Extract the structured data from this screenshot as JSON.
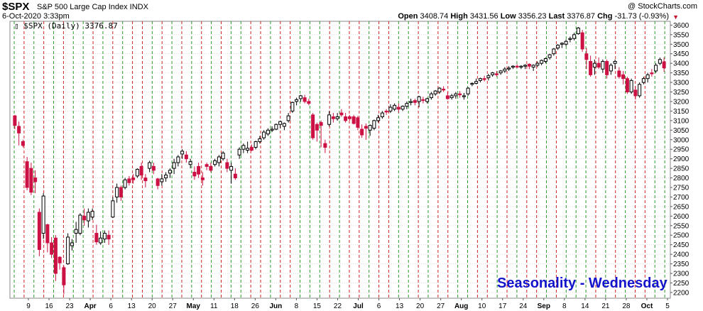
{
  "header": {
    "symbol": "$SPX",
    "description": "S&P 500 Large Cap Index INDX",
    "brand": "@ StockCharts.com",
    "datetime": "6-Oct-2020 3:33pm",
    "open_label": "Open",
    "open": "3408.74",
    "high_label": "High",
    "high": "3431.56",
    "low_label": "Low",
    "low": "3356.23",
    "last_label": "Last",
    "last": "3376.87",
    "chg_label": "Chg",
    "chg": "-31.73 (-0.93%)"
  },
  "legend_text": "$SPX (Daily) 3376.87",
  "annotation": "Seasonality - Wednesday",
  "colors": {
    "up": "#000000",
    "down": "#cc1144",
    "green_line": "#2a9a2a",
    "red_line": "#cc2222",
    "grid": "#cccccc",
    "annotation": "#1414cc"
  },
  "chart_data": {
    "type": "candlestick",
    "ylim": [
      2170,
      3620
    ],
    "y_axis_position": "right",
    "y_ticks": [
      2200,
      2250,
      2300,
      2350,
      2400,
      2450,
      2500,
      2550,
      2600,
      2650,
      2700,
      2750,
      2800,
      2850,
      2900,
      2950,
      3000,
      3050,
      3100,
      3150,
      3200,
      3250,
      3300,
      3350,
      3400,
      3450,
      3500,
      3550,
      3600
    ],
    "x_tick_labels": [
      {
        "label": "9",
        "month": false
      },
      {
        "label": "16",
        "month": false
      },
      {
        "label": "23",
        "month": false
      },
      {
        "label": "Apr",
        "month": true
      },
      {
        "label": "6",
        "month": false
      },
      {
        "label": "13",
        "month": false
      },
      {
        "label": "20",
        "month": false
      },
      {
        "label": "27",
        "month": false
      },
      {
        "label": "May",
        "month": true
      },
      {
        "label": "11",
        "month": false
      },
      {
        "label": "18",
        "month": false
      },
      {
        "label": "26",
        "month": false
      },
      {
        "label": "Jun",
        "month": true
      },
      {
        "label": "8",
        "month": false
      },
      {
        "label": "15",
        "month": false
      },
      {
        "label": "22",
        "month": false
      },
      {
        "label": "Jul",
        "month": true
      },
      {
        "label": "6",
        "month": false
      },
      {
        "label": "13",
        "month": false
      },
      {
        "label": "20",
        "month": false
      },
      {
        "label": "27",
        "month": false
      },
      {
        "label": "Aug",
        "month": true
      },
      {
        "label": "10",
        "month": false
      },
      {
        "label": "17",
        "month": false
      },
      {
        "label": "24",
        "month": false
      },
      {
        "label": "Sep",
        "month": true
      },
      {
        "label": "8",
        "month": false
      },
      {
        "label": "14",
        "month": false
      },
      {
        "label": "21",
        "month": false
      },
      {
        "label": "28",
        "month": false
      },
      {
        "label": "Oct",
        "month": true
      },
      {
        "label": "5",
        "month": false
      }
    ],
    "weekly_markers": [
      "green",
      "red",
      "green",
      "red",
      "green",
      "red",
      "green",
      "green",
      "red",
      "green",
      "red",
      "green",
      "red",
      "red",
      "green",
      "red",
      "green",
      "red",
      "green",
      "red",
      "green",
      "red",
      "green",
      "green",
      "red",
      "red",
      "green",
      "red",
      "red",
      "green",
      "green",
      "green",
      "red",
      "green",
      "red",
      "red",
      "green",
      "red",
      "red",
      "green",
      "green",
      "red",
      "green",
      "red",
      "red",
      "green",
      "green",
      "red",
      "red",
      "green",
      "red",
      "green",
      "red",
      "red",
      "green",
      "red",
      "green",
      "green",
      "green",
      "red",
      "green",
      "red",
      "green",
      "red",
      "red",
      "green",
      "green"
    ],
    "candles": [
      [
        3125,
        3130,
        3055,
        3075
      ],
      [
        3070,
        3095,
        2970,
        3035
      ],
      [
        2990,
        3000,
        2960,
        2970
      ],
      [
        2885,
        2910,
        2735,
        2750
      ],
      [
        2850,
        2880,
        2710,
        2725
      ],
      [
        2800,
        2840,
        2720,
        2780
      ],
      [
        2620,
        2640,
        2390,
        2425
      ],
      [
        2510,
        2720,
        2480,
        2705
      ],
      [
        2555,
        2560,
        2410,
        2460
      ],
      [
        2460,
        2490,
        2380,
        2400
      ],
      [
        2485,
        2500,
        2260,
        2300
      ],
      [
        2385,
        2390,
        2320,
        2355
      ],
      [
        2330,
        2340,
        2190,
        2240
      ],
      [
        2350,
        2510,
        2345,
        2490
      ],
      [
        2445,
        2480,
        2420,
        2460
      ],
      [
        2510,
        2570,
        2460,
        2530
      ],
      [
        2510,
        2615,
        2500,
        2605
      ],
      [
        2600,
        2640,
        2550,
        2580
      ],
      [
        2575,
        2640,
        2540,
        2620
      ],
      [
        2595,
        2640,
        2580,
        2625
      ],
      [
        2510,
        2555,
        2450,
        2465
      ],
      [
        2460,
        2520,
        2450,
        2485
      ],
      [
        2480,
        2525,
        2460,
        2510
      ],
      [
        2500,
        2525,
        2450,
        2480
      ],
      [
        2595,
        2700,
        2590,
        2680
      ],
      [
        2700,
        2770,
        2670,
        2750
      ],
      [
        2750,
        2760,
        2680,
        2700
      ],
      [
        2750,
        2800,
        2740,
        2790
      ],
      [
        2795,
        2810,
        2760,
        2775
      ],
      [
        2800,
        2820,
        2770,
        2790
      ],
      [
        2810,
        2850,
        2800,
        2845
      ],
      [
        2860,
        2880,
        2790,
        2815
      ],
      [
        2800,
        2820,
        2750,
        2785
      ],
      [
        2850,
        2890,
        2830,
        2880
      ],
      [
        2860,
        2880,
        2820,
        2840
      ],
      [
        2795,
        2800,
        2740,
        2760
      ],
      [
        2780,
        2820,
        2760,
        2795
      ],
      [
        2800,
        2830,
        2780,
        2815
      ],
      [
        2825,
        2850,
        2800,
        2840
      ],
      [
        2850,
        2900,
        2820,
        2880
      ],
      [
        2880,
        2920,
        2860,
        2910
      ],
      [
        2925,
        2950,
        2900,
        2940
      ],
      [
        2920,
        2940,
        2880,
        2900
      ],
      [
        2870,
        2900,
        2850,
        2885
      ],
      [
        2830,
        2860,
        2790,
        2810
      ],
      [
        2860,
        2880,
        2800,
        2820
      ],
      [
        2800,
        2830,
        2760,
        2790
      ],
      [
        2870,
        2880,
        2840,
        2860
      ],
      [
        2860,
        2880,
        2830,
        2840
      ],
      [
        2870,
        2900,
        2860,
        2890
      ],
      [
        2880,
        2920,
        2860,
        2910
      ],
      [
        2900,
        2940,
        2890,
        2930
      ],
      [
        2880,
        2900,
        2830,
        2850
      ],
      [
        2840,
        2880,
        2770,
        2860
      ],
      [
        2820,
        2850,
        2790,
        2800
      ],
      [
        2920,
        2960,
        2900,
        2950
      ],
      [
        2950,
        2980,
        2930,
        2970
      ],
      [
        2945,
        2990,
        2930,
        2955
      ],
      [
        2960,
        2975,
        2940,
        2945
      ],
      [
        2960,
        2995,
        2950,
        2990
      ],
      [
        2990,
        3020,
        2980,
        3005
      ],
      [
        3010,
        3050,
        3000,
        3040
      ],
      [
        3030,
        3060,
        3020,
        3050
      ],
      [
        3050,
        3070,
        3040,
        3055
      ],
      [
        3055,
        3085,
        3050,
        3080
      ],
      [
        3080,
        3100,
        3060,
        3095
      ],
      [
        3070,
        3090,
        3050,
        3085
      ],
      [
        3100,
        3140,
        3090,
        3125
      ],
      [
        3150,
        3200,
        3140,
        3195
      ],
      [
        3200,
        3220,
        3180,
        3210
      ],
      [
        3215,
        3235,
        3200,
        3230
      ],
      [
        3220,
        3235,
        3190,
        3200
      ],
      [
        3200,
        3215,
        3180,
        3190
      ],
      [
        3130,
        3140,
        3000,
        3010
      ],
      [
        3080,
        3090,
        2990,
        3050
      ],
      [
        3090,
        3100,
        2960,
        3075
      ],
      [
        2980,
        3000,
        2930,
        2960
      ],
      [
        3080,
        3150,
        3070,
        3130
      ],
      [
        3120,
        3140,
        3090,
        3110
      ],
      [
        3110,
        3140,
        3100,
        3120
      ],
      [
        3140,
        3160,
        3120,
        3130
      ],
      [
        3120,
        3140,
        3090,
        3100
      ],
      [
        3120,
        3130,
        3100,
        3110
      ],
      [
        3120,
        3130,
        3080,
        3085
      ],
      [
        3115,
        3125,
        3050,
        3065
      ],
      [
        3055,
        3080,
        3010,
        3025
      ],
      [
        3070,
        3085,
        3000,
        3060
      ],
      [
        3050,
        3080,
        3020,
        3075
      ],
      [
        3060,
        3105,
        3050,
        3100
      ],
      [
        3100,
        3130,
        3090,
        3115
      ],
      [
        3120,
        3150,
        3110,
        3140
      ],
      [
        3150,
        3160,
        3130,
        3145
      ],
      [
        3150,
        3185,
        3140,
        3170
      ],
      [
        3160,
        3190,
        3150,
        3180
      ],
      [
        3170,
        3190,
        3140,
        3160
      ],
      [
        3160,
        3180,
        3150,
        3175
      ],
      [
        3175,
        3200,
        3160,
        3190
      ],
      [
        3195,
        3215,
        3180,
        3200
      ],
      [
        3205,
        3215,
        3180,
        3195
      ],
      [
        3200,
        3230,
        3170,
        3225
      ],
      [
        3210,
        3225,
        3190,
        3205
      ],
      [
        3200,
        3220,
        3190,
        3215
      ],
      [
        3220,
        3250,
        3210,
        3240
      ],
      [
        3240,
        3260,
        3230,
        3255
      ],
      [
        3250,
        3275,
        3240,
        3270
      ],
      [
        3265,
        3280,
        3250,
        3260
      ],
      [
        3230,
        3250,
        3210,
        3215
      ],
      [
        3220,
        3240,
        3210,
        3230
      ],
      [
        3230,
        3250,
        3215,
        3240
      ],
      [
        3240,
        3255,
        3220,
        3235
      ],
      [
        3225,
        3245,
        3210,
        3230
      ],
      [
        3240,
        3275,
        3230,
        3270
      ],
      [
        3290,
        3300,
        3280,
        3295
      ],
      [
        3295,
        3320,
        3290,
        3305
      ],
      [
        3310,
        3325,
        3300,
        3320
      ],
      [
        3320,
        3335,
        3305,
        3315
      ],
      [
        3325,
        3345,
        3310,
        3335
      ],
      [
        3340,
        3355,
        3330,
        3350
      ],
      [
        3345,
        3360,
        3330,
        3340
      ],
      [
        3350,
        3365,
        3340,
        3360
      ],
      [
        3360,
        3380,
        3350,
        3370
      ],
      [
        3370,
        3385,
        3360,
        3375
      ],
      [
        3380,
        3390,
        3370,
        3385
      ],
      [
        3385,
        3395,
        3375,
        3380
      ],
      [
        3380,
        3390,
        3370,
        3385
      ],
      [
        3385,
        3395,
        3370,
        3390
      ],
      [
        3395,
        3400,
        3370,
        3385
      ],
      [
        3380,
        3395,
        3360,
        3390
      ],
      [
        3390,
        3410,
        3380,
        3400
      ],
      [
        3400,
        3420,
        3390,
        3415
      ],
      [
        3410,
        3430,
        3400,
        3425
      ],
      [
        3430,
        3450,
        3420,
        3445
      ],
      [
        3450,
        3480,
        3440,
        3475
      ],
      [
        3480,
        3500,
        3470,
        3495
      ],
      [
        3500,
        3510,
        3480,
        3505
      ],
      [
        3500,
        3525,
        3490,
        3515
      ],
      [
        3525,
        3540,
        3510,
        3530
      ],
      [
        3530,
        3560,
        3520,
        3550
      ],
      [
        3555,
        3590,
        3550,
        3585
      ],
      [
        3560,
        3575,
        3460,
        3475
      ],
      [
        3450,
        3480,
        3370,
        3420
      ],
      [
        3410,
        3440,
        3330,
        3340
      ],
      [
        3380,
        3420,
        3340,
        3400
      ],
      [
        3400,
        3430,
        3370,
        3380
      ],
      [
        3370,
        3420,
        3350,
        3410
      ],
      [
        3410,
        3420,
        3320,
        3340
      ],
      [
        3360,
        3400,
        3340,
        3390
      ],
      [
        3400,
        3420,
        3370,
        3410
      ],
      [
        3360,
        3380,
        3320,
        3330
      ],
      [
        3340,
        3360,
        3290,
        3320
      ],
      [
        3320,
        3330,
        3240,
        3250
      ],
      [
        3250,
        3320,
        3240,
        3310
      ],
      [
        3260,
        3280,
        3210,
        3230
      ],
      [
        3230,
        3300,
        3220,
        3290
      ],
      [
        3300,
        3330,
        3290,
        3320
      ],
      [
        3320,
        3350,
        3300,
        3340
      ],
      [
        3350,
        3370,
        3330,
        3345
      ],
      [
        3360,
        3400,
        3350,
        3390
      ],
      [
        3400,
        3430,
        3390,
        3420
      ],
      [
        3408,
        3431,
        3356,
        3376
      ]
    ]
  }
}
